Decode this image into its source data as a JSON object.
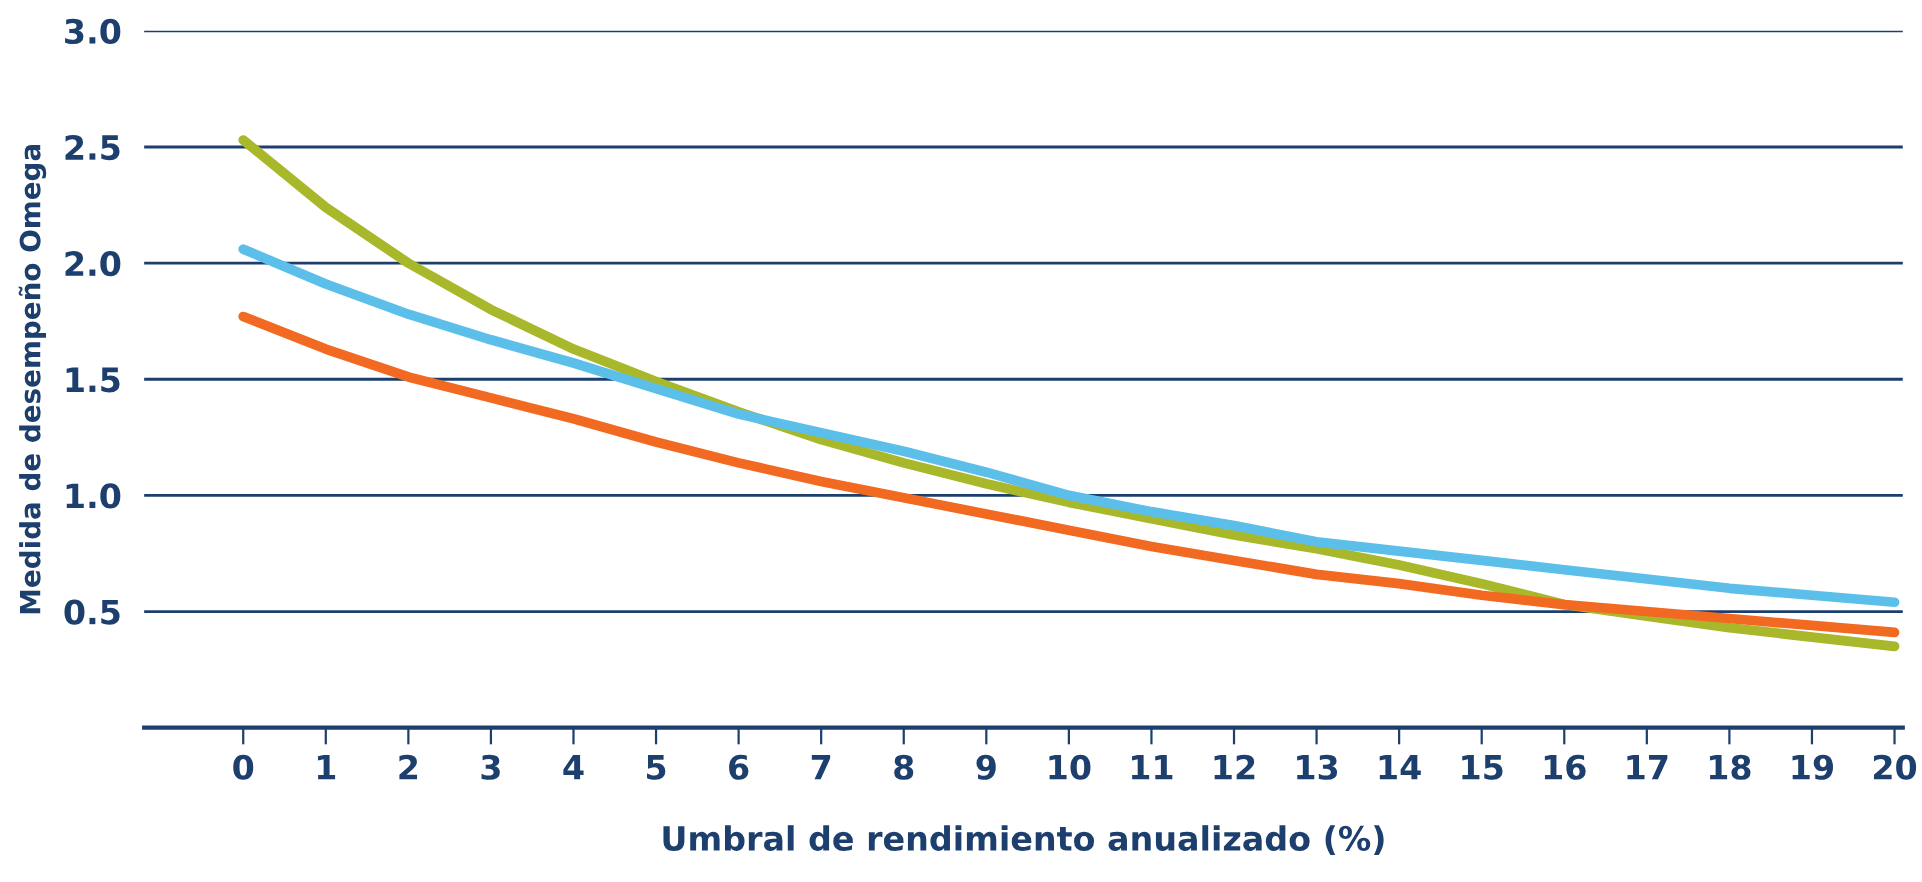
{
  "chart_data": {
    "type": "line",
    "xlabel": "Umbral de rendimiento anualizado (%)",
    "ylabel": "Medida de desempeño Omega",
    "x": [
      0,
      1,
      2,
      3,
      4,
      5,
      6,
      7,
      8,
      9,
      10,
      11,
      12,
      13,
      14,
      15,
      16,
      17,
      18,
      19,
      20
    ],
    "series": [
      {
        "color": "#a9b82a",
        "values": [
          2.53,
          2.24,
          2.0,
          1.8,
          1.63,
          1.49,
          1.36,
          1.24,
          1.14,
          1.05,
          0.97,
          0.9,
          0.83,
          0.77,
          0.7,
          0.62,
          0.53,
          0.48,
          0.43,
          0.39,
          0.35
        ]
      },
      {
        "color": "#5bbfea",
        "values": [
          2.06,
          1.91,
          1.78,
          1.67,
          1.57,
          1.46,
          1.35,
          1.27,
          1.19,
          1.1,
          1.0,
          0.93,
          0.87,
          0.8,
          0.76,
          0.72,
          0.68,
          0.64,
          0.6,
          0.57,
          0.54
        ]
      },
      {
        "color": "#f26a21",
        "values": [
          1.77,
          1.63,
          1.51,
          1.42,
          1.33,
          1.23,
          1.14,
          1.06,
          0.99,
          0.92,
          0.85,
          0.78,
          0.72,
          0.66,
          0.62,
          0.57,
          0.53,
          0.5,
          0.47,
          0.44,
          0.41
        ]
      }
    ],
    "xlim": [
      -1.2,
      20.1
    ],
    "ylim": [
      0,
      3.0
    ],
    "xticks": [
      0,
      1,
      2,
      3,
      4,
      5,
      6,
      7,
      8,
      9,
      10,
      11,
      12,
      13,
      14,
      15,
      16,
      17,
      18,
      19,
      20
    ],
    "yticks": [
      {
        "value": 0,
        "label": null
      },
      0.5,
      {
        "value": 1,
        "label": "1.0"
      },
      1.5,
      {
        "value": 2,
        "label": "2.0"
      },
      2.5,
      {
        "value": 3,
        "label": "3.0"
      }
    ],
    "grid": "y",
    "legend": false,
    "marker": "none",
    "line_style": "solid"
  }
}
